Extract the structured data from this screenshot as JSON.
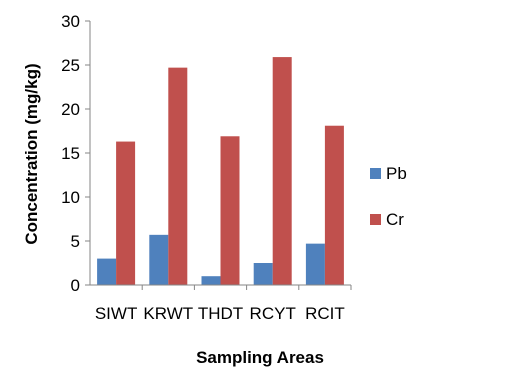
{
  "chart_data": {
    "type": "bar",
    "title": "",
    "xlabel": "Sampling Areas",
    "ylabel": "Concentration (mg/kg)",
    "categories": [
      "SIWT",
      "KRWT",
      "THDT",
      "RCYT",
      "RCIT"
    ],
    "series": [
      {
        "name": "Pb",
        "color": "#4f81bd",
        "values": [
          3.0,
          5.7,
          1.0,
          2.5,
          4.7
        ]
      },
      {
        "name": "Cr",
        "color": "#c0504d",
        "values": [
          16.3,
          24.7,
          16.9,
          25.9,
          18.1
        ]
      }
    ],
    "ylim": [
      0,
      30
    ],
    "yticks": [
      0,
      5,
      10,
      15,
      20,
      25,
      30
    ],
    "grid": false,
    "legend": "right"
  }
}
